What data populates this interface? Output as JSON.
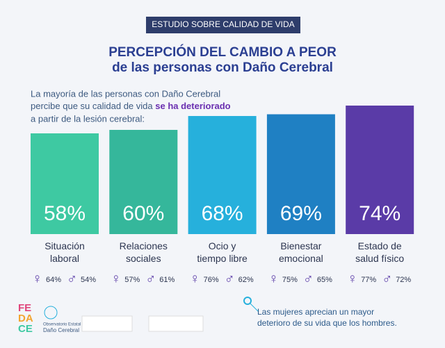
{
  "chart_data": {
    "type": "bar",
    "banner": "ESTUDIO SOBRE CALIDAD DE VIDA",
    "title": "PERCEPCIÓN DEL CAMBIO A PEOR",
    "subtitle": "de las personas con Daño Cerebral",
    "intro": [
      "La mayoría de las personas con Daño Cerebral",
      "percibe que su calidad de vida",
      "se ha deteriorado",
      "a partir de la lesión cerebral:"
    ],
    "categories": [
      "Situación\nlaboral",
      "Relaciones\nsociales",
      "Ocio y\ntiempo libre",
      "Bienestar\nemocional",
      "Estado de\nsalud físico"
    ],
    "values": [
      58,
      60,
      68,
      69,
      74
    ],
    "value_labels": [
      "58%",
      "60%",
      "68%",
      "69%",
      "74%"
    ],
    "colors": [
      "#3ec9a2",
      "#35b79b",
      "#26b0dc",
      "#1f80c3",
      "#5a3ba7"
    ],
    "series": [
      {
        "name": "♀",
        "color": "#5a3ba7",
        "values": [
          64,
          57,
          76,
          75,
          77
        ],
        "value_labels": [
          "64%",
          "57%",
          "76%",
          "75%",
          "77%"
        ]
      },
      {
        "name": "♂",
        "color": "#5a3ba7",
        "values": [
          54,
          61,
          62,
          65,
          72
        ],
        "value_labels": [
          "54%",
          "61%",
          "62%",
          "65%",
          "72%"
        ]
      }
    ],
    "note": "Las mujeres aprecian un mayor\ndeterioro de su vida que los hombres.",
    "logo": [
      "FE",
      "DA",
      "CE"
    ],
    "observatory": [
      "Observatorio Estatal",
      "Daño Cerebral"
    ]
  }
}
